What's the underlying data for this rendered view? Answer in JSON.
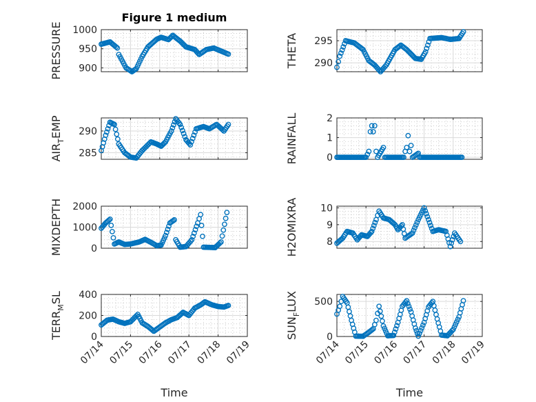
{
  "chart_data": [
    {
      "type": "scatter",
      "panel": "PRESSURE",
      "title": "Figure 1 medium",
      "xlabel": "",
      "ylabel": "PRESSURE",
      "xlim": [
        "2014-07-14",
        "2014-07-19"
      ],
      "ylim": [
        890,
        1000
      ],
      "yticks": [
        900,
        950,
        1000
      ],
      "keys": [
        [
          14.0,
          962
        ],
        [
          14.3,
          968
        ],
        [
          14.55,
          952
        ],
        [
          14.6,
          935
        ],
        [
          14.85,
          900
        ],
        [
          15.05,
          890
        ],
        [
          15.2,
          898
        ],
        [
          15.4,
          930
        ],
        [
          15.6,
          955
        ],
        [
          15.9,
          975
        ],
        [
          16.05,
          980
        ],
        [
          16.3,
          974
        ],
        [
          16.45,
          985
        ],
        [
          16.7,
          970
        ],
        [
          16.9,
          955
        ],
        [
          17.2,
          948
        ],
        [
          17.35,
          935
        ],
        [
          17.6,
          948
        ],
        [
          17.85,
          952
        ],
        [
          18.1,
          944
        ],
        [
          18.35,
          936
        ]
      ]
    },
    {
      "type": "scatter",
      "panel": "THETA",
      "title": "",
      "xlabel": "",
      "ylabel": "THETA",
      "xlim": [
        "2014-07-14",
        "2014-07-19"
      ],
      "ylim": [
        288,
        297.5
      ],
      "yticks": [
        290,
        295
      ],
      "keys": [
        [
          14.0,
          289
        ],
        [
          14.1,
          291.5
        ],
        [
          14.3,
          295
        ],
        [
          14.6,
          294.5
        ],
        [
          14.9,
          293
        ],
        [
          15.1,
          290.5
        ],
        [
          15.3,
          289.5
        ],
        [
          15.5,
          288
        ],
        [
          15.7,
          289.5
        ],
        [
          16.0,
          293
        ],
        [
          16.2,
          294
        ],
        [
          16.4,
          293
        ],
        [
          16.7,
          291
        ],
        [
          16.9,
          290.8
        ],
        [
          17.05,
          292.5
        ],
        [
          17.2,
          295.5
        ],
        [
          17.6,
          295.7
        ],
        [
          17.9,
          295.3
        ],
        [
          18.2,
          295.5
        ],
        [
          18.35,
          297
        ]
      ]
    },
    {
      "type": "scatter",
      "panel": "AIR_TEMP",
      "title": "",
      "xlabel": "",
      "ylabel": "AIR_TEMP",
      "xlim": [
        "2014-07-14",
        "2014-07-19"
      ],
      "ylim": [
        283.5,
        293
      ],
      "yticks": [
        285,
        290
      ],
      "keys": [
        [
          14.0,
          285.5
        ],
        [
          14.15,
          289
        ],
        [
          14.3,
          292
        ],
        [
          14.45,
          291.5
        ],
        [
          14.6,
          287
        ],
        [
          14.8,
          285
        ],
        [
          15.0,
          284
        ],
        [
          15.2,
          283.8
        ],
        [
          15.4,
          285.5
        ],
        [
          15.7,
          287.5
        ],
        [
          15.9,
          287
        ],
        [
          16.05,
          286.5
        ],
        [
          16.2,
          287.5
        ],
        [
          16.4,
          290
        ],
        [
          16.55,
          292.8
        ],
        [
          16.7,
          291.5
        ],
        [
          16.9,
          288
        ],
        [
          17.05,
          286.8
        ],
        [
          17.25,
          290.5
        ],
        [
          17.5,
          291
        ],
        [
          17.7,
          290.5
        ],
        [
          17.95,
          291.5
        ],
        [
          18.2,
          290
        ],
        [
          18.35,
          291.5
        ]
      ]
    },
    {
      "type": "scatter",
      "panel": "RAINFALL",
      "title": "",
      "xlabel": "",
      "ylabel": "RAINFALL",
      "xlim": [
        "2014-07-14",
        "2014-07-19"
      ],
      "ylim": [
        -0.1,
        2
      ],
      "yticks": [
        0,
        1,
        2
      ],
      "keys": [
        [
          14.0,
          0
        ],
        [
          15.0,
          0
        ],
        [
          15.1,
          0.3
        ],
        [
          15.15,
          1.3
        ],
        [
          15.2,
          1.6
        ],
        [
          15.25,
          1.3
        ],
        [
          15.3,
          1.6
        ],
        [
          15.35,
          0.3
        ],
        [
          15.4,
          0
        ],
        [
          15.6,
          0.5
        ],
        [
          15.65,
          0
        ],
        [
          16.3,
          0
        ],
        [
          16.35,
          0.3
        ],
        [
          16.4,
          0.5
        ],
        [
          16.45,
          1.1
        ],
        [
          16.5,
          0.3
        ],
        [
          16.55,
          0.6
        ],
        [
          16.6,
          0
        ],
        [
          16.8,
          0.2
        ],
        [
          16.85,
          0
        ],
        [
          18.3,
          0
        ]
      ]
    },
    {
      "type": "scatter",
      "panel": "MIXDEPTH",
      "title": "",
      "xlabel": "",
      "ylabel": "MIXDEPTH",
      "xlim": [
        "2014-07-14",
        "2014-07-19"
      ],
      "ylim": [
        0,
        2000
      ],
      "yticks": [
        0,
        1000,
        2000
      ],
      "keys": [
        [
          14.0,
          950
        ],
        [
          14.15,
          1200
        ],
        [
          14.3,
          1380
        ],
        [
          14.45,
          200
        ],
        [
          14.6,
          300
        ],
        [
          14.8,
          180
        ],
        [
          15.0,
          200
        ],
        [
          15.3,
          300
        ],
        [
          15.5,
          420
        ],
        [
          15.7,
          280
        ],
        [
          15.9,
          120
        ],
        [
          16.05,
          150
        ],
        [
          16.2,
          600
        ],
        [
          16.35,
          1200
        ],
        [
          16.5,
          1350
        ],
        [
          16.55,
          400
        ],
        [
          16.7,
          50
        ],
        [
          16.9,
          80
        ],
        [
          17.1,
          400
        ],
        [
          17.3,
          1200
        ],
        [
          17.4,
          1600
        ],
        [
          17.5,
          50
        ],
        [
          17.9,
          30
        ],
        [
          18.1,
          300
        ],
        [
          18.3,
          1700
        ]
      ]
    },
    {
      "type": "scatter",
      "panel": "H2OMIXRA",
      "title": "",
      "xlabel": "",
      "ylabel": "H2OMIXRA",
      "xlim": [
        "2014-07-14",
        "2014-07-19"
      ],
      "ylim": [
        7.6,
        10.1
      ],
      "yticks": [
        8,
        9,
        10
      ],
      "keys": [
        [
          14.0,
          7.9
        ],
        [
          14.2,
          8.2
        ],
        [
          14.35,
          8.6
        ],
        [
          14.55,
          8.5
        ],
        [
          14.7,
          8.1
        ],
        [
          14.85,
          8.4
        ],
        [
          15.05,
          8.3
        ],
        [
          15.2,
          8.6
        ],
        [
          15.35,
          9.3
        ],
        [
          15.45,
          9.8
        ],
        [
          15.6,
          9.4
        ],
        [
          15.8,
          9.3
        ],
        [
          16.0,
          9.0
        ],
        [
          16.1,
          8.7
        ],
        [
          16.25,
          9.0
        ],
        [
          16.35,
          8.2
        ],
        [
          16.6,
          8.5
        ],
        [
          16.8,
          9.3
        ],
        [
          17.0,
          10.0
        ],
        [
          17.15,
          9.3
        ],
        [
          17.3,
          8.6
        ],
        [
          17.5,
          8.7
        ],
        [
          17.75,
          8.6
        ],
        [
          17.9,
          7.7
        ],
        [
          18.05,
          8.5
        ],
        [
          18.25,
          8.0
        ]
      ]
    },
    {
      "type": "scatter",
      "panel": "TERR_MSL",
      "title": "",
      "xlabel": "Time",
      "ylabel": "TERR_MSL",
      "xlim": [
        "2014-07-14",
        "2014-07-19"
      ],
      "ylim": [
        0,
        400
      ],
      "yticks": [
        0,
        200,
        400
      ],
      "xticks": [
        "07/14",
        "07/15",
        "07/16",
        "07/17",
        "07/18",
        "07/19"
      ],
      "keys": [
        [
          14.0,
          110
        ],
        [
          14.2,
          155
        ],
        [
          14.4,
          165
        ],
        [
          14.6,
          140
        ],
        [
          14.8,
          125
        ],
        [
          15.0,
          140
        ],
        [
          15.25,
          210
        ],
        [
          15.4,
          130
        ],
        [
          15.6,
          95
        ],
        [
          15.8,
          50
        ],
        [
          16.0,
          90
        ],
        [
          16.2,
          130
        ],
        [
          16.4,
          160
        ],
        [
          16.6,
          180
        ],
        [
          16.8,
          230
        ],
        [
          17.0,
          200
        ],
        [
          17.2,
          270
        ],
        [
          17.4,
          300
        ],
        [
          17.55,
          330
        ],
        [
          17.8,
          300
        ],
        [
          18.0,
          285
        ],
        [
          18.2,
          280
        ],
        [
          18.35,
          295
        ]
      ]
    },
    {
      "type": "scatter",
      "panel": "SUN_FLUX",
      "title": "",
      "xlabel": "Time",
      "ylabel": "SUN_FLUX",
      "xlim": [
        "2014-07-14",
        "2014-07-19"
      ],
      "ylim": [
        0,
        600
      ],
      "yticks": [
        0,
        500
      ],
      "xticks": [
        "07/14",
        "07/15",
        "07/16",
        "07/17",
        "07/18",
        "07/19"
      ],
      "keys": [
        [
          14.0,
          320
        ],
        [
          14.1,
          430
        ],
        [
          14.2,
          570
        ],
        [
          14.35,
          480
        ],
        [
          14.5,
          230
        ],
        [
          14.65,
          5
        ],
        [
          14.9,
          3
        ],
        [
          15.1,
          60
        ],
        [
          15.25,
          110
        ],
        [
          15.35,
          230
        ],
        [
          15.45,
          430
        ],
        [
          15.6,
          150
        ],
        [
          15.75,
          10
        ],
        [
          15.95,
          15
        ],
        [
          16.1,
          200
        ],
        [
          16.25,
          430
        ],
        [
          16.4,
          510
        ],
        [
          16.55,
          350
        ],
        [
          16.7,
          120
        ],
        [
          16.8,
          5
        ],
        [
          17.0,
          200
        ],
        [
          17.15,
          420
        ],
        [
          17.3,
          500
        ],
        [
          17.45,
          250
        ],
        [
          17.6,
          20
        ],
        [
          17.8,
          10
        ],
        [
          18.0,
          100
        ],
        [
          18.2,
          280
        ],
        [
          18.35,
          510
        ]
      ]
    }
  ]
}
